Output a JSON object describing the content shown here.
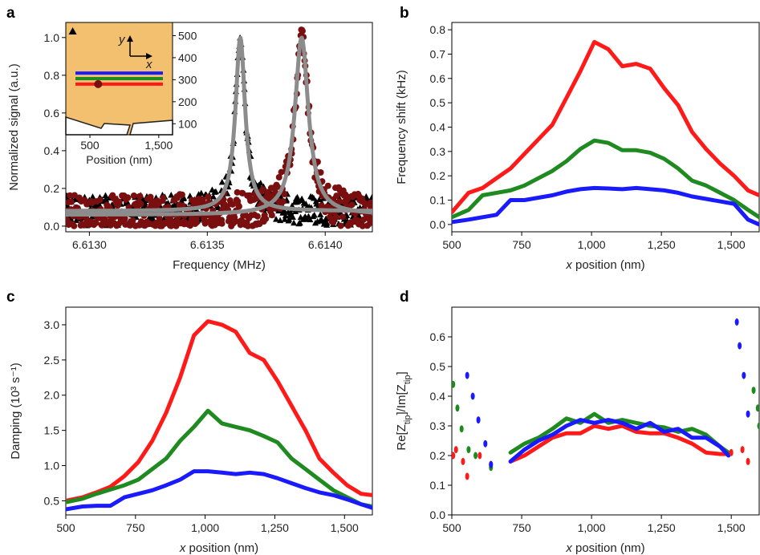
{
  "colors": {
    "red": "#ff1a1a",
    "green": "#1f8a1f",
    "blue": "#1a1aff",
    "gray": "#8c8c8c",
    "black": "#000000",
    "darkred": "#7a0f0f",
    "inset_bg": "#f2c06e"
  },
  "chart_data": [
    {
      "panel": "a",
      "type": "scatter",
      "xlabel": "Frequency (MHz)",
      "ylabel": "Normalized signal (a.u.)",
      "xlim": [
        6.6129,
        6.6142
      ],
      "ylim": [
        -0.03,
        1.08
      ],
      "xticks": [
        6.613,
        6.6135,
        6.614
      ],
      "xtick_labels": [
        "6.6130",
        "6.6135",
        "6.6140"
      ],
      "yticks": [
        0.0,
        0.2,
        0.4,
        0.6,
        0.8,
        1.0
      ],
      "ytick_labels": [
        "0.0",
        "0.2",
        "0.4",
        "0.6",
        "0.8",
        "1.0"
      ],
      "series": [
        {
          "marker": "triangle",
          "color": "black",
          "center": 6.61364,
          "hwhm": 2.5e-05,
          "baseline": 0.08,
          "noise": 0.06
        },
        {
          "marker": "circle",
          "color": "darkred",
          "center": 6.6139,
          "hwhm": 3.5e-05,
          "baseline": 0.06,
          "noise": 0.08
        }
      ],
      "fits": [
        {
          "color": "gray",
          "center": 6.61364,
          "hwhm": 2.5e-05,
          "baseline": 0.08
        },
        {
          "color": "gray",
          "center": 6.6139,
          "hwhm": 3.5e-05,
          "baseline": 0.06
        }
      ],
      "inset": {
        "xlabel": "Position (nm)",
        "xticks": [
          500,
          1500
        ],
        "xtick_labels": [
          "500",
          "1,500"
        ],
        "yticks": [
          100,
          200,
          300,
          400,
          500
        ],
        "ytick_labels": [
          "100",
          "200",
          "300",
          "400",
          "500"
        ],
        "xlim": [
          150,
          1700
        ],
        "ylim": [
          50,
          560
        ],
        "axis_x": "x",
        "axis_y": "y",
        "lines": [
          {
            "color": "blue",
            "y": 330
          },
          {
            "color": "green",
            "y": 305
          },
          {
            "color": "red",
            "y": 280
          }
        ],
        "dot": {
          "x": 620,
          "y": 280
        },
        "triangle": {
          "x": 250,
          "y": 520
        }
      }
    },
    {
      "panel": "b",
      "type": "line",
      "xlabel": "x position (nm)",
      "ylabel": "Frequency shift (kHz)",
      "xlim": [
        500,
        1600
      ],
      "ylim": [
        -0.03,
        0.83
      ],
      "xticks": [
        500,
        750,
        1000,
        1250,
        1500
      ],
      "xtick_labels": [
        "500",
        "750",
        "1,000",
        "1,250",
        "1,500"
      ],
      "yticks": [
        0.0,
        0.1,
        0.2,
        0.3,
        0.4,
        0.5,
        0.6,
        0.7,
        0.8
      ],
      "ytick_labels": [
        "0.0",
        "0.1",
        "0.2",
        "0.3",
        "0.4",
        "0.5",
        "0.6",
        "0.7",
        "0.8"
      ],
      "series": [
        {
          "color": "red",
          "x": [
            500,
            560,
            610,
            660,
            710,
            760,
            810,
            860,
            910,
            960,
            1010,
            1060,
            1110,
            1160,
            1210,
            1260,
            1310,
            1360,
            1410,
            1460,
            1510,
            1560,
            1600
          ],
          "y": [
            0.05,
            0.13,
            0.15,
            0.19,
            0.23,
            0.29,
            0.35,
            0.41,
            0.52,
            0.63,
            0.75,
            0.72,
            0.65,
            0.66,
            0.64,
            0.56,
            0.49,
            0.38,
            0.31,
            0.25,
            0.2,
            0.14,
            0.12
          ]
        },
        {
          "color": "green",
          "x": [
            500,
            560,
            610,
            660,
            710,
            760,
            810,
            860,
            910,
            960,
            1010,
            1060,
            1110,
            1160,
            1210,
            1260,
            1310,
            1360,
            1410,
            1460,
            1510,
            1560,
            1600
          ],
          "y": [
            0.03,
            0.06,
            0.12,
            0.13,
            0.14,
            0.16,
            0.19,
            0.22,
            0.26,
            0.31,
            0.345,
            0.335,
            0.305,
            0.305,
            0.295,
            0.27,
            0.23,
            0.18,
            0.16,
            0.13,
            0.1,
            0.06,
            0.03
          ]
        },
        {
          "color": "blue",
          "x": [
            500,
            560,
            610,
            660,
            710,
            760,
            810,
            860,
            910,
            960,
            1010,
            1060,
            1110,
            1160,
            1210,
            1260,
            1310,
            1360,
            1410,
            1460,
            1510,
            1560,
            1600
          ],
          "y": [
            0.01,
            0.02,
            0.03,
            0.04,
            0.1,
            0.1,
            0.11,
            0.12,
            0.135,
            0.145,
            0.15,
            0.148,
            0.145,
            0.15,
            0.145,
            0.14,
            0.13,
            0.115,
            0.105,
            0.095,
            0.085,
            0.02,
            0.0
          ]
        }
      ]
    },
    {
      "panel": "c",
      "type": "line",
      "xlabel": "x position (nm)",
      "ylabel": "Damping (10³ s⁻¹)",
      "xlim": [
        500,
        1600
      ],
      "ylim": [
        0.3,
        3.25
      ],
      "xticks": [
        500,
        750,
        1000,
        1250,
        1500
      ],
      "xtick_labels": [
        "500",
        "750",
        "1,000",
        "1,250",
        "1,500"
      ],
      "yticks": [
        0.5,
        1.0,
        1.5,
        2.0,
        2.5,
        3.0
      ],
      "ytick_labels": [
        "0.5",
        "1.0",
        "1.5",
        "2.0",
        "2.5",
        "3.0"
      ],
      "series": [
        {
          "color": "red",
          "x": [
            500,
            560,
            610,
            660,
            710,
            760,
            810,
            860,
            910,
            960,
            1010,
            1060,
            1110,
            1160,
            1210,
            1260,
            1310,
            1360,
            1410,
            1460,
            1510,
            1560,
            1600
          ],
          "y": [
            0.5,
            0.55,
            0.62,
            0.7,
            0.85,
            1.05,
            1.35,
            1.75,
            2.25,
            2.85,
            3.05,
            3.0,
            2.9,
            2.6,
            2.5,
            2.2,
            1.85,
            1.5,
            1.1,
            0.9,
            0.72,
            0.6,
            0.58
          ]
        },
        {
          "color": "green",
          "x": [
            500,
            560,
            610,
            660,
            710,
            760,
            810,
            860,
            910,
            960,
            1010,
            1060,
            1110,
            1160,
            1210,
            1260,
            1310,
            1360,
            1410,
            1460,
            1510,
            1560,
            1600
          ],
          "y": [
            0.48,
            0.53,
            0.6,
            0.66,
            0.72,
            0.8,
            0.95,
            1.1,
            1.35,
            1.55,
            1.78,
            1.6,
            1.55,
            1.5,
            1.42,
            1.33,
            1.1,
            0.95,
            0.8,
            0.65,
            0.55,
            0.45,
            0.42
          ]
        },
        {
          "color": "blue",
          "x": [
            500,
            560,
            610,
            660,
            710,
            760,
            810,
            860,
            910,
            960,
            1010,
            1060,
            1110,
            1160,
            1210,
            1260,
            1310,
            1360,
            1410,
            1460,
            1510,
            1560,
            1600
          ],
          "y": [
            0.38,
            0.42,
            0.43,
            0.43,
            0.55,
            0.6,
            0.65,
            0.72,
            0.8,
            0.92,
            0.92,
            0.9,
            0.88,
            0.9,
            0.88,
            0.82,
            0.75,
            0.68,
            0.62,
            0.58,
            0.52,
            0.45,
            0.4
          ]
        }
      ]
    },
    {
      "panel": "d",
      "type": "line",
      "xlabel": "x position (nm)",
      "ylabel": "Re[Z_tip]/Im[Z_tip]",
      "xlim": [
        500,
        1600
      ],
      "ylim": [
        0.0,
        0.7
      ],
      "xticks": [
        500,
        750,
        1000,
        1250,
        1500
      ],
      "xtick_labels": [
        "500",
        "750",
        "1,000",
        "1,250",
        "1,500"
      ],
      "yticks": [
        0.0,
        0.1,
        0.2,
        0.3,
        0.4,
        0.5,
        0.6
      ],
      "ytick_labels": [
        "0.0",
        "0.1",
        "0.2",
        "0.3",
        "0.4",
        "0.5",
        "0.6"
      ],
      "series": [
        {
          "color": "red",
          "x": [
            710,
            760,
            810,
            860,
            910,
            960,
            1010,
            1060,
            1110,
            1160,
            1210,
            1260,
            1310,
            1360,
            1410,
            1460,
            1490
          ],
          "y": [
            0.18,
            0.2,
            0.23,
            0.26,
            0.275,
            0.275,
            0.3,
            0.29,
            0.3,
            0.28,
            0.275,
            0.275,
            0.26,
            0.24,
            0.21,
            0.205,
            0.205
          ]
        },
        {
          "color": "green",
          "x": [
            710,
            760,
            810,
            860,
            910,
            960,
            1010,
            1060,
            1110,
            1160,
            1210,
            1260,
            1310,
            1360,
            1410,
            1460,
            1490
          ],
          "y": [
            0.21,
            0.24,
            0.26,
            0.29,
            0.325,
            0.31,
            0.34,
            0.31,
            0.32,
            0.31,
            0.3,
            0.295,
            0.28,
            0.29,
            0.27,
            0.23,
            0.21
          ]
        },
        {
          "color": "blue",
          "x": [
            710,
            760,
            810,
            860,
            910,
            960,
            1010,
            1060,
            1110,
            1160,
            1210,
            1260,
            1310,
            1360,
            1410,
            1460,
            1490
          ],
          "y": [
            0.18,
            0.22,
            0.25,
            0.27,
            0.3,
            0.32,
            0.31,
            0.32,
            0.31,
            0.29,
            0.31,
            0.28,
            0.29,
            0.26,
            0.26,
            0.23,
            0.2
          ]
        }
      ],
      "dotted_series": [
        {
          "color": "red",
          "x": [
            505,
            515,
            540,
            555,
            600,
            640
          ],
          "y": [
            0.2,
            0.22,
            0.18,
            0.13,
            0.2,
            0.17
          ]
        },
        {
          "color": "green",
          "x": [
            505,
            520,
            535,
            560,
            585,
            640
          ],
          "y": [
            0.44,
            0.36,
            0.29,
            0.22,
            0.2,
            0.16
          ]
        },
        {
          "color": "blue",
          "x": [
            555,
            575,
            595,
            620,
            640
          ],
          "y": [
            0.47,
            0.4,
            0.32,
            0.24,
            0.17
          ]
        },
        {
          "color": "red",
          "x": [
            1500,
            1540,
            1560
          ],
          "y": [
            0.21,
            0.22,
            0.18
          ]
        },
        {
          "color": "green",
          "x": [
            1580,
            1595,
            1600
          ],
          "y": [
            0.42,
            0.36,
            0.3
          ]
        },
        {
          "color": "blue",
          "x": [
            1520,
            1530,
            1545,
            1560
          ],
          "y": [
            0.65,
            0.57,
            0.47,
            0.34
          ]
        }
      ]
    }
  ],
  "panel_labels": [
    "a",
    "b",
    "c",
    "d"
  ]
}
